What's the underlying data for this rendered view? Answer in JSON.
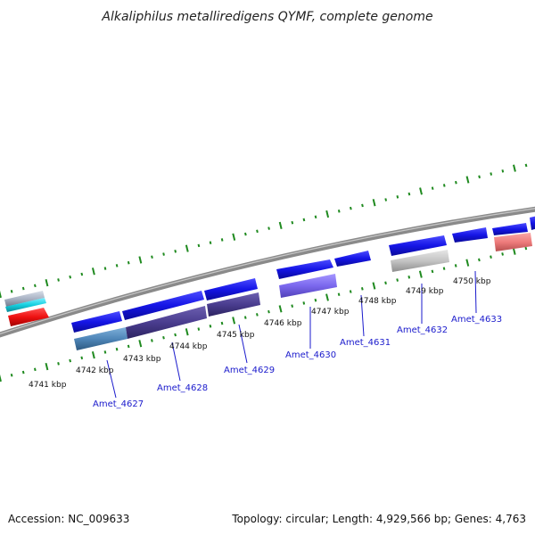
{
  "title": "Alkaliphilus metalliredigens QYMF, complete genome",
  "accession_text": "Accession: NC_009633",
  "summary_text": "Topology: circular; Length: 4,929,566 bp; Genes: 4,763",
  "colors": {
    "backbone": "#8a8a8a",
    "tick": "#1f8a1f",
    "label": "#1a1acc",
    "gene_forward": "#1515e6",
    "gene_steelblue": "#4f86b8",
    "gene_darkslate": "#4a3d8f",
    "gene_mediumslate": "#7b68ee",
    "gene_silver": "#c4c4c4",
    "gene_salmon": "#ee7b7b",
    "gene_red": "#ee1111",
    "gene_cyan": "#15d0e0",
    "gene_grey": "#a9b3c4"
  },
  "chart_data": {
    "type": "genome-map",
    "units": "kbp",
    "ticks": [
      {
        "kbp": 4741,
        "label": "4741 kbp"
      },
      {
        "kbp": 4742,
        "label": "4742 kbp"
      },
      {
        "kbp": 4743,
        "label": "4743 kbp"
      },
      {
        "kbp": 4744,
        "label": "4744 kbp"
      },
      {
        "kbp": 4745,
        "label": "4745 kbp"
      },
      {
        "kbp": 4746,
        "label": "4746 kbp"
      },
      {
        "kbp": 4747,
        "label": "4747 kbp"
      },
      {
        "kbp": 4748,
        "label": "4748 kbp"
      },
      {
        "kbp": 4749,
        "label": "4749 kbp"
      },
      {
        "kbp": 4750,
        "label": "4750 kbp"
      }
    ],
    "gene_labels": [
      {
        "name": "Amet_4627",
        "start_kbp": 4741.75,
        "end_kbp": 4742.45
      },
      {
        "name": "Amet_4628",
        "start_kbp": 4742.55,
        "end_kbp": 4744.15
      },
      {
        "name": "Amet_4629",
        "start_kbp": 4744.2,
        "end_kbp": 4745.1
      },
      {
        "name": "Amet_4630",
        "start_kbp": 4745.85,
        "end_kbp": 4747.0
      },
      {
        "name": "Amet_4631",
        "start_kbp": 4747.1,
        "end_kbp": 4747.7
      },
      {
        "name": "Amet_4632",
        "start_kbp": 4748.3,
        "end_kbp": 4749.3
      },
      {
        "name": "Amet_4633",
        "start_kbp": 4749.4,
        "end_kbp": 4750.0
      }
    ]
  }
}
